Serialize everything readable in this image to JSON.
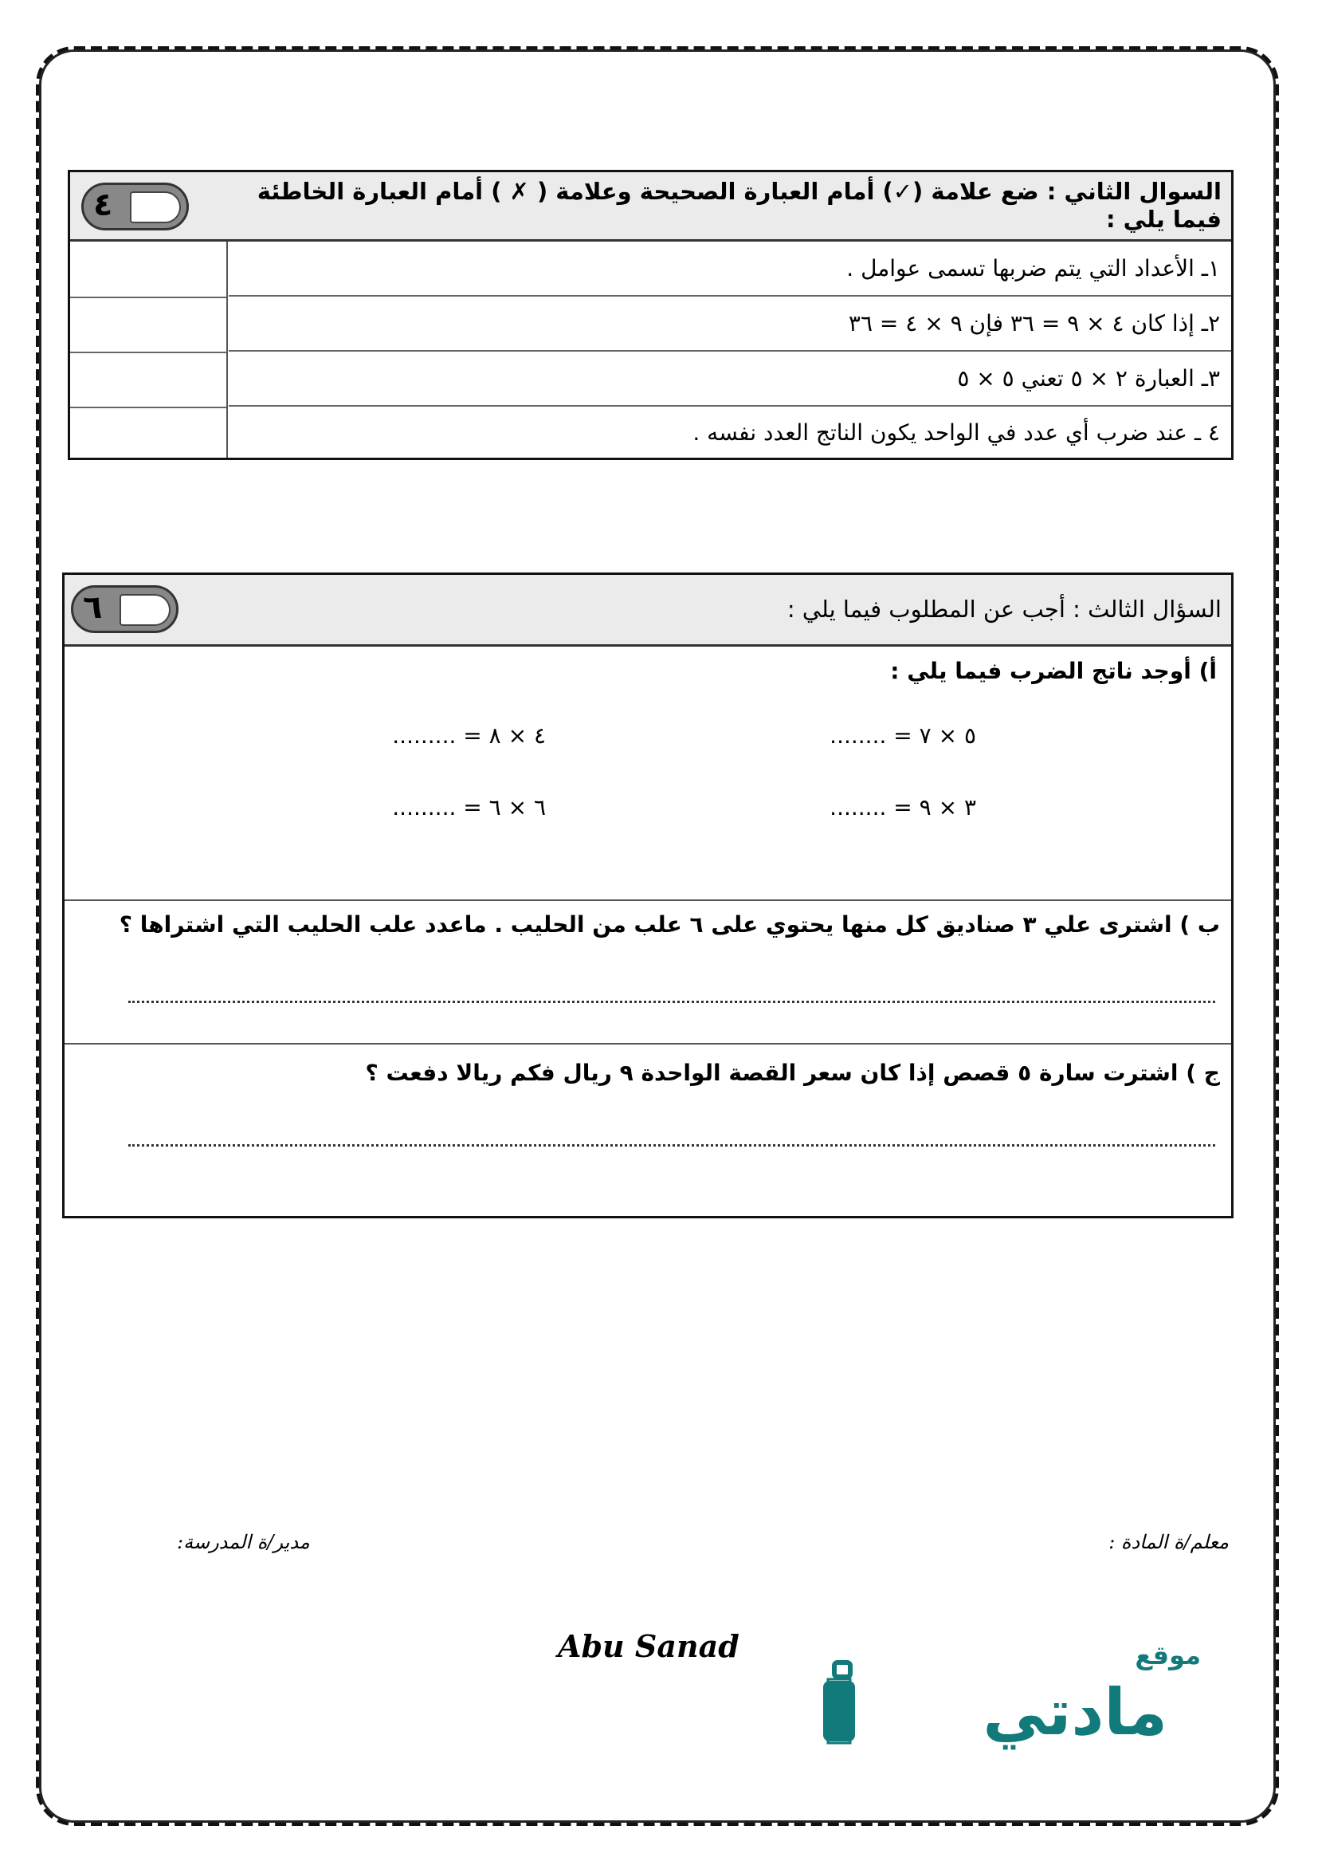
{
  "q2": {
    "title": "السوال الثاني  : ضع علامة (✓) أمام العبارة الصحيحة وعلامة ( ✗ ) أمام العبارة الخاطئة فيما يلي  :",
    "score": "٤",
    "items": [
      "١ـ الأعداد التي يتم ضربها تسمى عوامل .",
      "٢ـ إذا كان ٤ × ٩ = ٣٦ فإن ٩ × ٤ = ٣٦",
      "٣ـ  العبارة ٢ × ٥ تعني ٥ × ٥",
      "٤ ـ عند  ضرب أي عدد في الواحد يكون الناتج العدد نفسه ."
    ]
  },
  "q3": {
    "title": "السؤال الثالث  : أجب عن المطلوب فيما يلي  :",
    "score": "٦",
    "a": {
      "label": "أ)  أوجد ناتج الضرب فيما يلي  :",
      "equations": [
        "٥ × ٧ = ........",
        "٤ × ٨ = .........",
        "٣ × ٩ = ........",
        "٦ × ٦ = ........."
      ]
    },
    "b": "ب )  اشترى علي  ٣  صناديق  كل منها يحتوي على ٦ علب من الحليب . ماعدد علب الحليب التي اشتراها ؟",
    "c": "ج ) اشترت سارة ٥ قصص إذا كان سعر القصة الواحدة ٩ ريال فكم ريالا دفعت  ؟"
  },
  "footer": {
    "teacher": "معلم/ة المادة :",
    "principal": "مدير/ة المدرسة:",
    "author": "Abu Sanad",
    "logo_small": "موقع",
    "logo_main": "مادتي",
    "logo_color": "#127a7a"
  }
}
